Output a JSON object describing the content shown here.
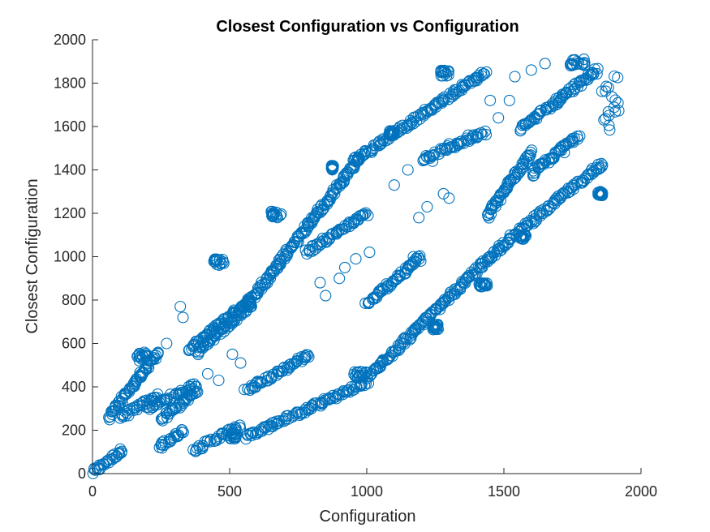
{
  "chart_data": {
    "type": "scatter",
    "title": "Closest Configuration vs Configuration",
    "xlabel": "Configuration",
    "ylabel": "Closest Configuration",
    "xlim": [
      0,
      2000
    ],
    "ylim": [
      0,
      2000
    ],
    "xticks": [
      "0",
      "500",
      "1000",
      "1500",
      "2000"
    ],
    "yticks": [
      "0",
      "200",
      "400",
      "600",
      "800",
      "1000",
      "1200",
      "1400",
      "1600",
      "1800",
      "2000"
    ],
    "grid": false,
    "marker": "open-circle",
    "marker_color": "#0072BD",
    "segments": [
      {
        "from": [
          0,
          5
        ],
        "to": [
          110,
          110
        ]
      },
      {
        "from": [
          60,
          260
        ],
        "to": [
          240,
          560
        ]
      },
      {
        "from": [
          100,
          260
        ],
        "to": [
          240,
          360
        ]
      },
      {
        "from": [
          200,
          300
        ],
        "to": [
          380,
          410
        ]
      },
      {
        "from": [
          250,
          250
        ],
        "to": [
          380,
          380
        ]
      },
      {
        "from": [
          240,
          120
        ],
        "to": [
          330,
          200
        ]
      },
      {
        "from": [
          370,
          110
        ],
        "to": [
          540,
          220
        ]
      },
      {
        "from": [
          350,
          570
        ],
        "to": [
          570,
          800
        ]
      },
      {
        "from": [
          380,
          560
        ],
        "to": [
          580,
          780
        ]
      },
      {
        "from": [
          560,
          170
        ],
        "to": [
          1000,
          420
        ]
      },
      {
        "from": [
          560,
          380
        ],
        "to": [
          790,
          550
        ]
      },
      {
        "from": [
          560,
          770
        ],
        "to": [
          970,
          1450
        ]
      },
      {
        "from": [
          950,
          1440
        ],
        "to": [
          1430,
          1850
        ]
      },
      {
        "from": [
          780,
          1020
        ],
        "to": [
          1000,
          1200
        ]
      },
      {
        "from": [
          1000,
          780
        ],
        "to": [
          1200,
          1000
        ]
      },
      {
        "from": [
          1000,
          440
        ],
        "to": [
          1500,
          1060
        ]
      },
      {
        "from": [
          1500,
          1060
        ],
        "to": [
          1860,
          1430
        ]
      },
      {
        "from": [
          1200,
          1450
        ],
        "to": [
          1430,
          1570
        ]
      },
      {
        "from": [
          1560,
          1590
        ],
        "to": [
          1840,
          1860
        ]
      },
      {
        "from": [
          1600,
          1380
        ],
        "to": [
          1770,
          1560
        ]
      },
      {
        "from": [
          1440,
          1190
        ],
        "to": [
          1600,
          1480
        ]
      }
    ],
    "clusters": [
      {
        "x": [
          1850,
          1920
        ],
        "y": [
          1580,
          1850
        ]
      },
      {
        "x": [
          1270,
          1300
        ],
        "y": [
          1830,
          1860
        ]
      },
      {
        "x": [
          1740,
          1800
        ],
        "y": [
          1880,
          1910
        ]
      },
      {
        "x": [
          1080,
          1100
        ],
        "y": [
          1560,
          1580
        ]
      },
      {
        "x": [
          440,
          480
        ],
        "y": [
          960,
          990
        ]
      },
      {
        "x": [
          650,
          690
        ],
        "y": [
          1180,
          1210
        ]
      },
      {
        "x": [
          870,
          880
        ],
        "y": [
          1400,
          1420
        ]
      },
      {
        "x": [
          1240,
          1260
        ],
        "y": [
          660,
          690
        ]
      },
      {
        "x": [
          950,
          1000
        ],
        "y": [
          440,
          470
        ]
      },
      {
        "x": [
          1410,
          1440
        ],
        "y": [
          860,
          880
        ]
      },
      {
        "x": [
          500,
          530
        ],
        "y": [
          160,
          190
        ]
      },
      {
        "x": [
          1840,
          1860
        ],
        "y": [
          1280,
          1300
        ]
      },
      {
        "x": [
          1560,
          1580
        ],
        "y": [
          1080,
          1100
        ]
      },
      {
        "x": [
          160,
          200
        ],
        "y": [
          520,
          560
        ]
      }
    ],
    "scattered_points": [
      [
        320,
        770
      ],
      [
        330,
        720
      ],
      [
        270,
        600
      ],
      [
        420,
        460
      ],
      [
        460,
        430
      ],
      [
        510,
        550
      ],
      [
        540,
        510
      ],
      [
        830,
        880
      ],
      [
        850,
        820
      ],
      [
        900,
        900
      ],
      [
        920,
        950
      ],
      [
        960,
        990
      ],
      [
        1010,
        1020
      ],
      [
        1190,
        1180
      ],
      [
        1220,
        1230
      ],
      [
        1280,
        1290
      ],
      [
        1300,
        1270
      ],
      [
        1170,
        1000
      ],
      [
        1300,
        1520
      ],
      [
        1370,
        1560
      ],
      [
        1480,
        1640
      ],
      [
        1520,
        1720
      ],
      [
        1540,
        1830
      ],
      [
        1600,
        1860
      ],
      [
        1650,
        1890
      ],
      [
        1380,
        1800
      ],
      [
        1100,
        1330
      ],
      [
        1150,
        1400
      ],
      [
        1240,
        1440
      ],
      [
        1450,
        1720
      ],
      [
        1560,
        1580
      ],
      [
        1720,
        1480
      ]
    ]
  }
}
